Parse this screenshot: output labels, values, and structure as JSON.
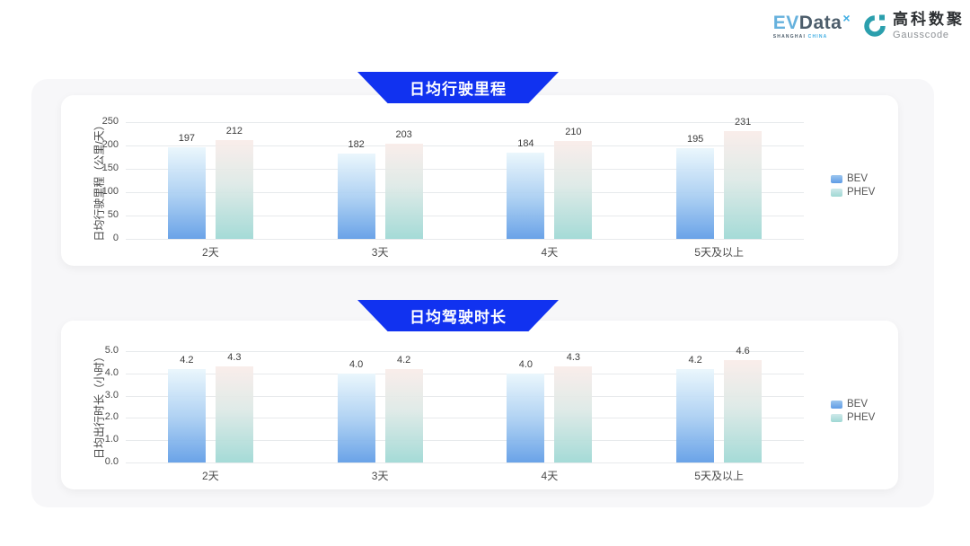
{
  "brand": {
    "evdata": {
      "ev": "EV",
      "data": "Data",
      "sup": "×",
      "sub_shanghai": "SHANGHAI",
      "sub_china": "CHINA"
    },
    "gausscode": {
      "cn": "高科数聚",
      "en": "Gausscode"
    }
  },
  "colors": {
    "banner_blue": "#1132f0",
    "bev_gradient_top": "#e9f6fc",
    "bev_gradient_bottom": "#5f9ce6",
    "phev_gradient_top": "#f9ece9",
    "phev_gradient_bottom": "#9ed8d4",
    "panel_bg": "#f7f7f9",
    "card_bg": "#ffffff",
    "gridline": "#e7eaec",
    "gausscode_teal": "#2b9fad"
  },
  "chart_data": [
    {
      "type": "bar",
      "title": "日均行驶里程",
      "ylabel": "日均行驶里程（公里/天）",
      "xlabel": "",
      "categories": [
        "2天",
        "3天",
        "4天",
        "5天及以上"
      ],
      "series": [
        {
          "name": "BEV",
          "values": [
            197,
            182,
            184,
            195
          ]
        },
        {
          "name": "PHEV",
          "values": [
            212,
            203,
            210,
            231
          ]
        }
      ],
      "ylim": [
        0,
        250
      ],
      "yticks": [
        250,
        200,
        150,
        100,
        50,
        0
      ],
      "decimals": 0,
      "grid": true,
      "legend_position": "right"
    },
    {
      "type": "bar",
      "title": "日均驾驶时长",
      "ylabel": "日均出行时长（小时）",
      "xlabel": "",
      "categories": [
        "2天",
        "3天",
        "4天",
        "5天及以上"
      ],
      "series": [
        {
          "name": "BEV",
          "values": [
            4.2,
            4.0,
            4.0,
            4.2
          ]
        },
        {
          "name": "PHEV",
          "values": [
            4.3,
            4.2,
            4.3,
            4.6
          ]
        }
      ],
      "ylim": [
        0,
        5
      ],
      "yticks": [
        5.0,
        4.0,
        3.0,
        2.0,
        1.0,
        0.0
      ],
      "decimals": 1,
      "grid": true,
      "legend_position": "right"
    }
  ]
}
